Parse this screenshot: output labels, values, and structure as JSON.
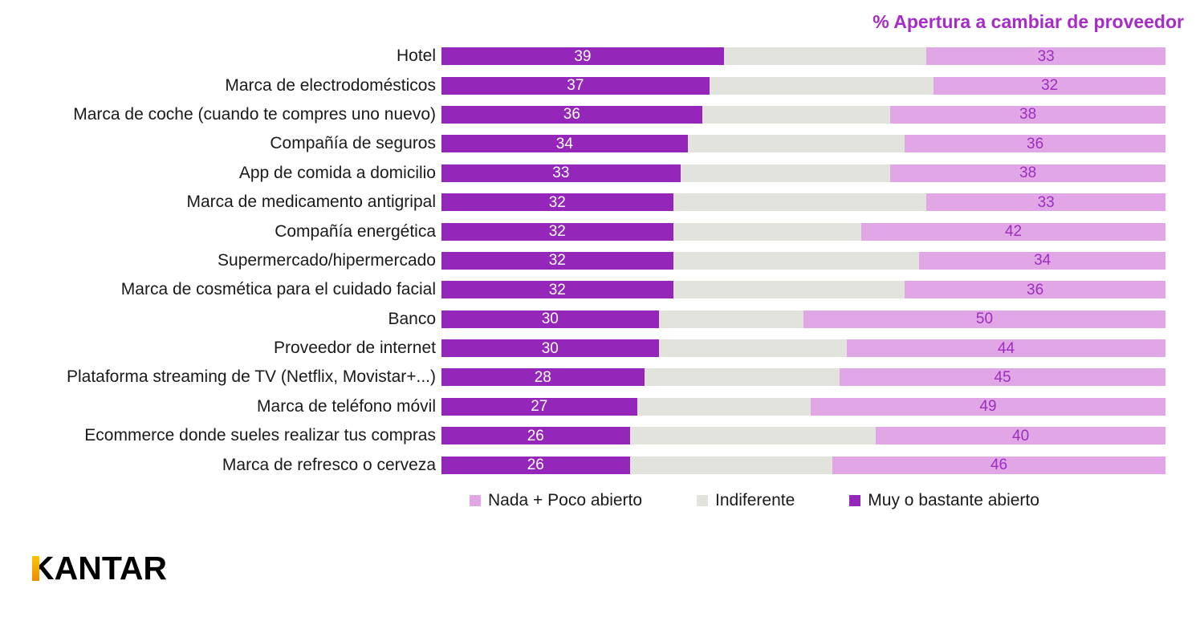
{
  "title": "% Apertura a cambiar de proveedor",
  "logo": {
    "brand": "KANTAR"
  },
  "colors": {
    "title": "#a62bc8",
    "dark_purple": "#9526ba",
    "gray": "#e3e3de",
    "light_purple": "#e0a6e6",
    "light_label": "#9c2fbe",
    "logo_bar_top": "#ffc600",
    "logo_bar_bottom": "#ef8a00"
  },
  "chart_data": {
    "type": "bar",
    "orientation": "horizontal-stacked",
    "title": "% Apertura a cambiar de proveedor",
    "xlim": [
      0,
      100
    ],
    "grid": false,
    "legend_position": "bottom",
    "categories": [
      "Hotel",
      "Marca de electrodomésticos",
      "Marca de coche (cuando te compres uno nuevo)",
      "Compañía de seguros",
      "App de comida a domicilio",
      "Marca de medicamento antigripal",
      "Compañía energética",
      "Supermercado/hipermercado",
      "Marca de cosmética para el cuidado facial",
      "Banco",
      "Proveedor de internet",
      "Plataforma streaming de TV (Netflix, Movistar+...)",
      "Marca de teléfono móvil",
      "Ecommerce donde sueles realizar tus compras",
      "Marca de refresco o cerveza"
    ],
    "series": [
      {
        "key": "muy-o-bastante-abierto",
        "name": "Muy o bastante abierto",
        "color": "#9526ba",
        "label_color": "#ffffff",
        "show_labels": true,
        "values": [
          39,
          37,
          36,
          34,
          33,
          32,
          32,
          32,
          32,
          30,
          30,
          28,
          27,
          26,
          26
        ]
      },
      {
        "key": "indiferente",
        "name": "Indiferente",
        "color": "#e3e3de",
        "show_labels": false,
        "values": [
          28,
          31,
          26,
          30,
          29,
          35,
          26,
          34,
          32,
          20,
          26,
          27,
          24,
          34,
          28
        ]
      },
      {
        "key": "nada-poco-abierto",
        "name": "Nada + Poco abierto",
        "color": "#e0a6e6",
        "label_color": "#9c2fbe",
        "show_labels": true,
        "values": [
          33,
          32,
          38,
          36,
          38,
          33,
          42,
          34,
          36,
          50,
          44,
          45,
          49,
          40,
          46
        ]
      }
    ],
    "legend": [
      {
        "key": "nada-poco-abierto",
        "label": "Nada + Poco abierto",
        "color": "#e0a6e6"
      },
      {
        "key": "indiferente",
        "label": "Indiferente",
        "color": "#e3e3de"
      },
      {
        "key": "muy-o-bastante-abierto",
        "label": "Muy o bastante abierto",
        "color": "#9526ba"
      }
    ]
  }
}
